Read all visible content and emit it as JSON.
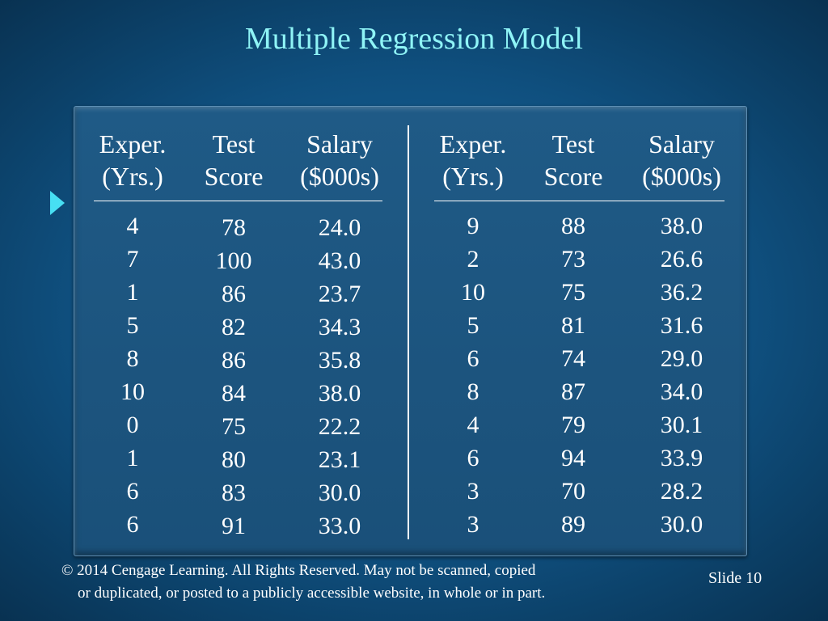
{
  "title": "Multiple Regression Model",
  "left_table": {
    "headers": [
      {
        "line1": "Exper.",
        "line2": "(Yrs.)"
      },
      {
        "line1": "Test",
        "line2": "Score"
      },
      {
        "line1": "Salary",
        "line2": "($000s)"
      }
    ],
    "rows": [
      [
        "4",
        "78",
        "24.0"
      ],
      [
        "7",
        "100",
        "43.0"
      ],
      [
        "1",
        "86",
        "23.7"
      ],
      [
        "5",
        "82",
        "34.3"
      ],
      [
        "8",
        "86",
        "35.8"
      ],
      [
        "10",
        "84",
        "38.0"
      ],
      [
        "0",
        "75",
        "22.2"
      ],
      [
        "1",
        "80",
        "23.1"
      ],
      [
        "6",
        "83",
        "30.0"
      ],
      [
        "6",
        "91",
        "33.0"
      ]
    ]
  },
  "right_table": {
    "headers": [
      {
        "line1": "Exper.",
        "line2": "(Yrs.)"
      },
      {
        "line1": "Test",
        "line2": "Score"
      },
      {
        "line1": "Salary",
        "line2": "($000s)"
      }
    ],
    "rows": [
      [
        "9",
        "88",
        "38.0"
      ],
      [
        "2",
        "73",
        "26.6"
      ],
      [
        "10",
        "75",
        "36.2"
      ],
      [
        "5",
        "81",
        "31.6"
      ],
      [
        "6",
        "74",
        "29.0"
      ],
      [
        "8",
        "87",
        "34.0"
      ],
      [
        "4",
        "79",
        "30.1"
      ],
      [
        "6",
        "94",
        "33.9"
      ],
      [
        "3",
        "70",
        "28.2"
      ],
      [
        "3",
        "89",
        "30.0"
      ]
    ]
  },
  "footer": {
    "copyright_line1": "© 2014  Cengage Learning.  All Rights Reserved.  May not be scanned, copied",
    "copyright_line2": "or duplicated, or posted to a publicly accessible website, in whole or in part.",
    "slide_label": "Slide  10"
  },
  "colors": {
    "title": "#8ff4f6",
    "bullet": "#47dff3",
    "text": "#ffffff"
  }
}
